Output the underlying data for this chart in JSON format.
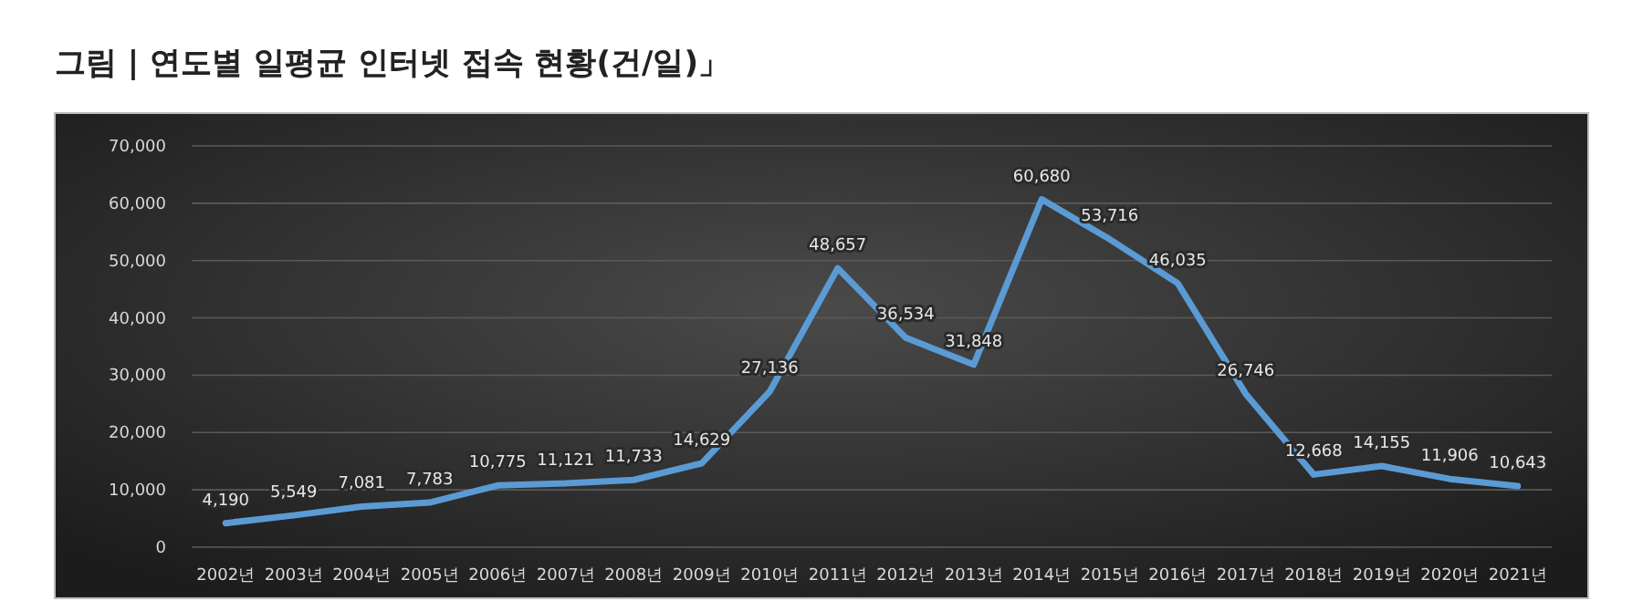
{
  "chart_data": {
    "type": "line",
    "title": "그림 | 연도별 일평균 인터넷 접속 현황(건/일)」",
    "categories": [
      "2002년",
      "2003년",
      "2004년",
      "2005년",
      "2006년",
      "2007년",
      "2008년",
      "2009년",
      "2010년",
      "2011년",
      "2012년",
      "2013년",
      "2014년",
      "2015년",
      "2016년",
      "2017년",
      "2018년",
      "2019년",
      "2020년",
      "2021년"
    ],
    "series": [
      {
        "color": "#5b9bd5",
        "values": [
          4190,
          5549,
          7081,
          7783,
          10775,
          11121,
          11733,
          14629,
          27136,
          48657,
          36534,
          31848,
          60680,
          53716,
          46035,
          26746,
          12668,
          14155,
          11906,
          10643
        ],
        "value_labels": [
          "4,190",
          "5,549",
          "7,081",
          "7,783",
          "10,775",
          "11,121",
          "11,733",
          "14,629",
          "27,136",
          "48,657",
          "36,534",
          "31,848",
          "60,680",
          "53,716",
          "46,035",
          "26,746",
          "12,668",
          "14,155",
          "11,906",
          "10,643"
        ]
      }
    ],
    "ylim": [
      0,
      70000
    ],
    "yticks": [
      0,
      {
        "value": 10000,
        "label": "10,000"
      },
      {
        "value": 20000,
        "label": "20,000"
      },
      {
        "value": 30000,
        "label": "30,000"
      },
      {
        "value": 40000,
        "label": "40,000"
      },
      {
        "value": 50000,
        "label": "50,000"
      },
      {
        "value": 60000,
        "label": "60,000"
      },
      {
        "value": 70000,
        "label": "70,000"
      }
    ],
    "grid": "y",
    "marker": "none",
    "line_style": "solid"
  }
}
